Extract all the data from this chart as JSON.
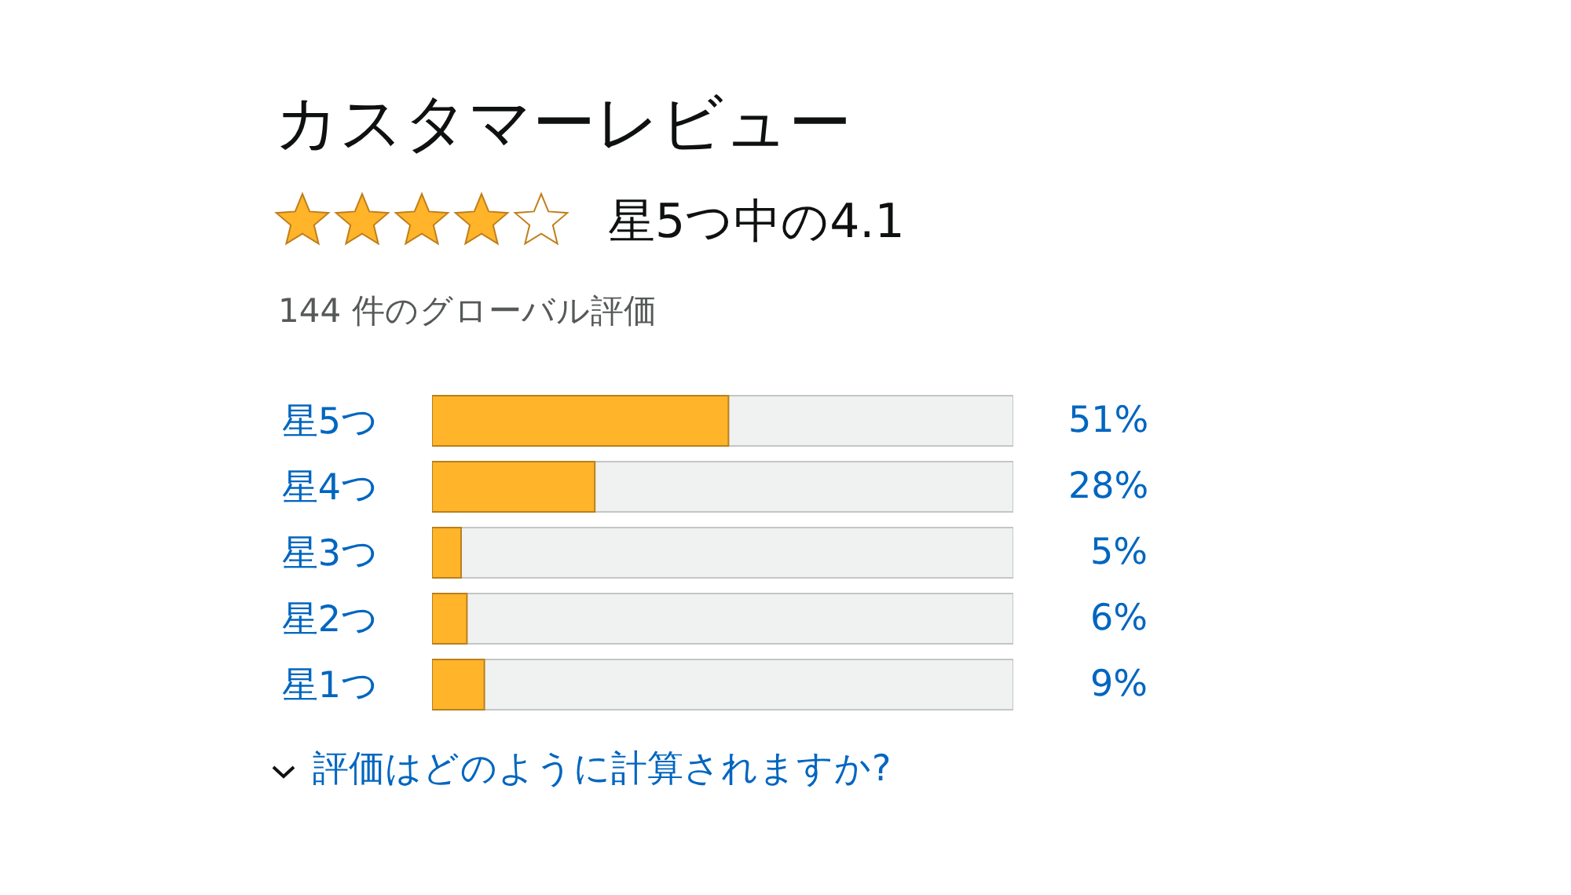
{
  "chart_data": {
    "type": "bar",
    "orientation": "horizontal",
    "title": "カスタマーレビュー",
    "subtitle": "星5つ中の4.1",
    "annotations": [
      "144 件のグローバル評価",
      "評価はどのように計算されますか?"
    ],
    "categories": [
      "星5つ",
      "星4つ",
      "星3つ",
      "星2つ",
      "星1つ"
    ],
    "values": [
      51,
      28,
      5,
      6,
      9
    ],
    "color": "#ffb42a",
    "value_labels": [
      "51%",
      "28%",
      "5%",
      "6%",
      "9%"
    ],
    "xlim": [
      0,
      100
    ],
    "tick_labels": "y"
  }
}
